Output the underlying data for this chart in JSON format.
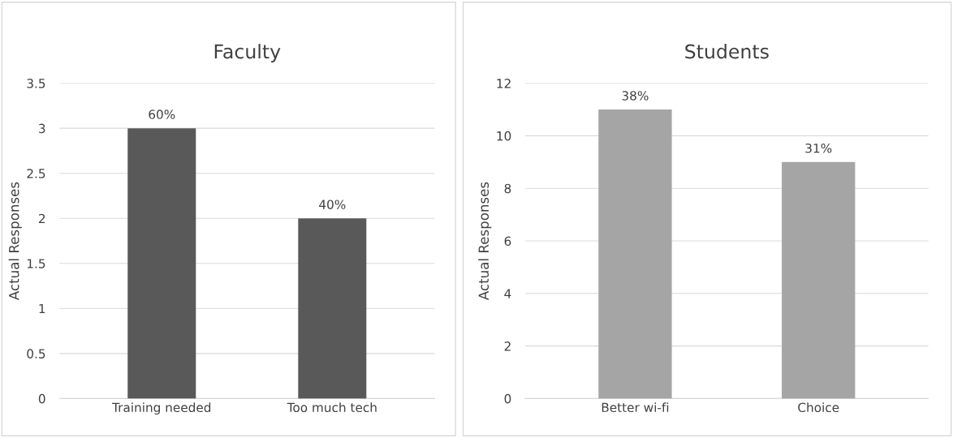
{
  "chart_data": [
    {
      "type": "bar",
      "title": "Faculty",
      "ylabel": "Actual Responses",
      "categories": [
        "Training needed",
        "Too much tech"
      ],
      "values": [
        3,
        2
      ],
      "color": "#595959",
      "annotations": [
        {
          "text": "60%",
          "x": "Training needed",
          "y": 3
        },
        {
          "text": "40%",
          "x": "Too much tech",
          "y": 2
        }
      ],
      "ylim": [
        0,
        3.5
      ],
      "yticks": [
        0,
        0.5,
        1,
        1.5,
        2,
        2.5,
        3,
        3.5
      ],
      "grid": "y"
    },
    {
      "type": "bar",
      "title": "Students",
      "ylabel": "Actual Responses",
      "categories": [
        "Better wi-fi",
        "Choice"
      ],
      "values": [
        11,
        9
      ],
      "color": "#a5a5a5",
      "annotations": [
        {
          "text": "38%",
          "x": "Better wi-fi",
          "y": 11
        },
        {
          "text": "31%",
          "x": "Choice",
          "y": 9
        }
      ],
      "ylim": [
        0,
        12
      ],
      "yticks": [
        0,
        2,
        4,
        6,
        8,
        10,
        12
      ],
      "grid": "y"
    }
  ]
}
